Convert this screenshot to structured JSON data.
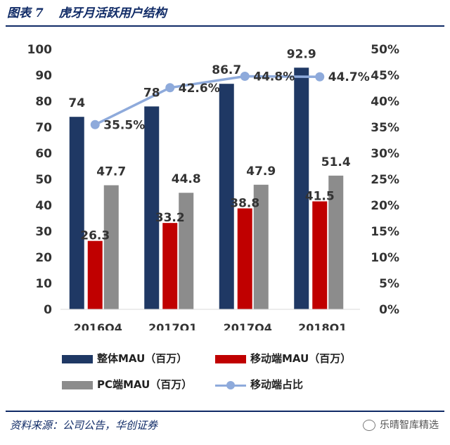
{
  "header": {
    "figure_number": "图表 7",
    "title": "虎牙月活跃用户结构"
  },
  "source": "资料来源：公司公告，华创证券",
  "watermark": "乐晴智库精选",
  "chart_data": {
    "type": "bar",
    "categories": [
      "2016Q4",
      "2017Q1",
      "2017Q4",
      "2018Q1"
    ],
    "series": [
      {
        "name": "整体MAU（百万）",
        "kind": "bar",
        "axis": "left",
        "color": "#1f3864",
        "values": [
          74,
          78,
          86.7,
          92.9
        ]
      },
      {
        "name": "移动端MAU（百万）",
        "kind": "bar",
        "axis": "left",
        "color": "#c00000",
        "values": [
          26.3,
          33.2,
          38.8,
          41.5
        ]
      },
      {
        "name": "PC端MAU（百万）",
        "kind": "bar",
        "axis": "left",
        "color": "#8c8c8c",
        "values": [
          47.7,
          44.8,
          47.9,
          51.4
        ]
      },
      {
        "name": "移动端占比",
        "kind": "line",
        "axis": "right",
        "color": "#8eaadb",
        "values": [
          35.5,
          42.6,
          44.8,
          44.7
        ]
      }
    ],
    "data_labels": {
      "bars": [
        [
          "74",
          "78",
          "86.7",
          "92.9"
        ],
        [
          "26.3",
          "33.2",
          "38.8",
          "41.5"
        ],
        [
          "47.7",
          "44.8",
          "47.9",
          "51.4"
        ]
      ],
      "line": [
        "35.5%",
        "42.6%",
        "44.8%",
        "44.7%"
      ]
    },
    "y_left": {
      "ylim": [
        0,
        100
      ],
      "ticks": [
        "0",
        "10",
        "20",
        "30",
        "40",
        "50",
        "60",
        "70",
        "80",
        "90",
        "100"
      ]
    },
    "y_right": {
      "ylim": [
        0,
        50
      ],
      "ticks": [
        "0%",
        "5%",
        "10%",
        "15%",
        "20%",
        "25%",
        "30%",
        "35%",
        "40%",
        "45%",
        "50%"
      ]
    },
    "grid": false,
    "legend_position": "bottom"
  }
}
